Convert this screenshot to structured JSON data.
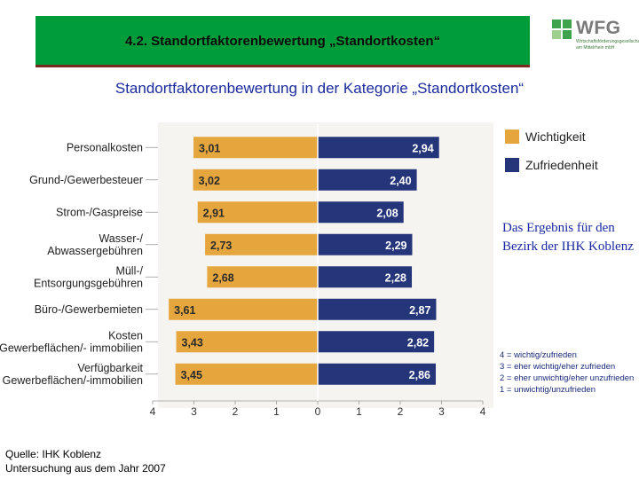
{
  "header": {
    "title": "4.2. Standortfaktorenbewertung „Standortkosten“"
  },
  "logo": {
    "text": "WFG",
    "subtitle": "Wirtschaftsförderungsgesellschaft am Mittelrhein mbH"
  },
  "subtitle": "Standortfaktorenbewertung in der Kategorie „Standortkosten“",
  "note": "Das Ergebnis für den Bezirk der IHK Koblenz",
  "source": {
    "line1": "Quelle: IHK Koblenz",
    "line2": "Untersuchung aus dem Jahr 2007"
  },
  "colors": {
    "importance": "#e5a63e",
    "satisfaction": "#24357a",
    "header": "#009c3a"
  },
  "chart_data": {
    "type": "bar",
    "orientation": "horizontal-butterfly",
    "categories": [
      "Personalkosten",
      "Grund-/Gewerbesteuer",
      "Strom-/Gaspreise",
      "Wasser-/ Abwassergebühren",
      "Müll-/ Entsorgungsgebühren",
      "Büro-/Gewerbemieten",
      "Kosten Gewerbeflächen/- immobilien",
      "Verfügbarkeit Gewerbeflächen/-immobilien"
    ],
    "series": [
      {
        "name": "Wichtigkeit",
        "values": [
          3.01,
          3.02,
          2.91,
          2.73,
          2.68,
          3.61,
          3.43,
          3.45
        ],
        "labels": [
          "3,01",
          "3,02",
          "2,91",
          "2,73",
          "2,68",
          "3,61",
          "3,43",
          "3,45"
        ]
      },
      {
        "name": "Zufriedenheit",
        "values": [
          2.94,
          2.4,
          2.08,
          2.29,
          2.28,
          2.87,
          2.82,
          2.86
        ],
        "labels": [
          "2,94",
          "2,40",
          "2,08",
          "2,29",
          "2,28",
          "2,87",
          "2,82",
          "2,86"
        ]
      }
    ],
    "xlim": [
      -4,
      4
    ],
    "x_ticks": [
      "4",
      "3",
      "2",
      "1",
      "0",
      "1",
      "2",
      "3",
      "4"
    ],
    "legend": [
      "Wichtigkeit",
      "Zufriedenheit"
    ],
    "scale_legend": [
      "4 = wichtig/zufrieden",
      "3 = eher wichtig/eher zufrieden",
      "2 = eher unwichtig/eher unzufrieden",
      "1 = unwichtig/unzufrieden"
    ]
  }
}
